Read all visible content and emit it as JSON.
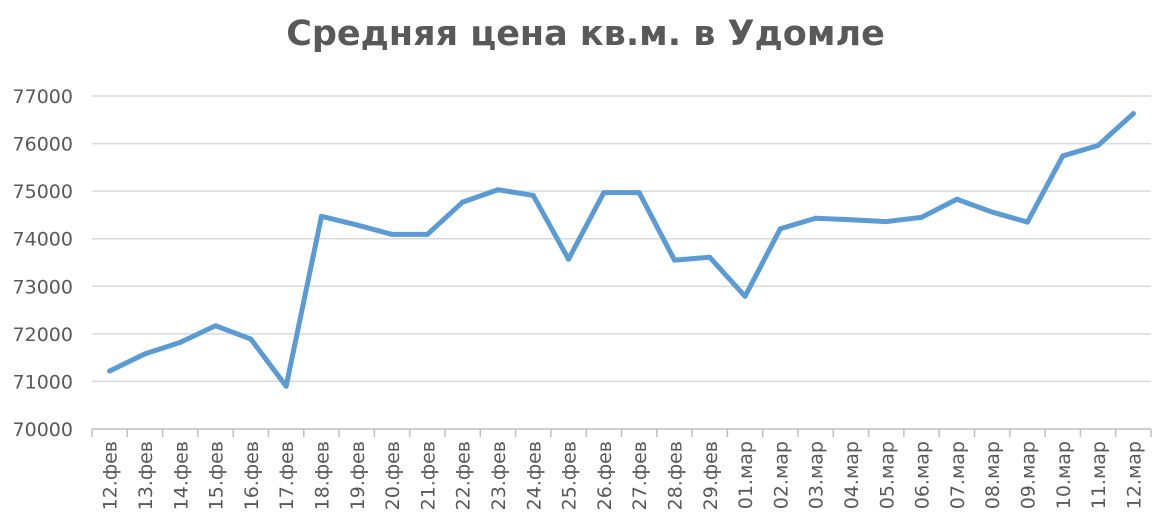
{
  "chart_data": {
    "type": "line",
    "title": "Средняя цена кв.м. в Удомле",
    "xlabel": "",
    "ylabel": "",
    "categories": [
      "12.фев",
      "13.фев",
      "14.фев",
      "15.фев",
      "16.фев",
      "17.фев",
      "18.фев",
      "19.фев",
      "20.фев",
      "21.фев",
      "22.фев",
      "23.фев",
      "24.фев",
      "25.фев",
      "26.фев",
      "27.фев",
      "28.фев",
      "29.фев",
      "01.мар",
      "02.мар",
      "03.мар",
      "04.мар",
      "05.мар",
      "06.мар",
      "07.мар",
      "08.мар",
      "09.мар",
      "10.мар",
      "11.мар",
      "12.мар"
    ],
    "series": [
      {
        "values": [
          71220,
          71580,
          71820,
          72170,
          71890,
          70900,
          74470,
          74290,
          74090,
          74090,
          74770,
          75030,
          74910,
          73570,
          74970,
          74970,
          73550,
          73610,
          72790,
          74210,
          74430,
          74400,
          74360,
          74450,
          74830,
          74560,
          74350,
          75740,
          75960,
          76630
        ],
        "color": "#5b9bd5"
      }
    ],
    "ylim": [
      70000,
      77000
    ],
    "yticks": [
      70000,
      71000,
      72000,
      73000,
      74000,
      75000,
      76000,
      77000
    ],
    "grid": true,
    "legend": "none",
    "colors": {
      "gridline": "#d9d9d9",
      "text": "#595959",
      "axis": "#bfbfbf"
    }
  }
}
